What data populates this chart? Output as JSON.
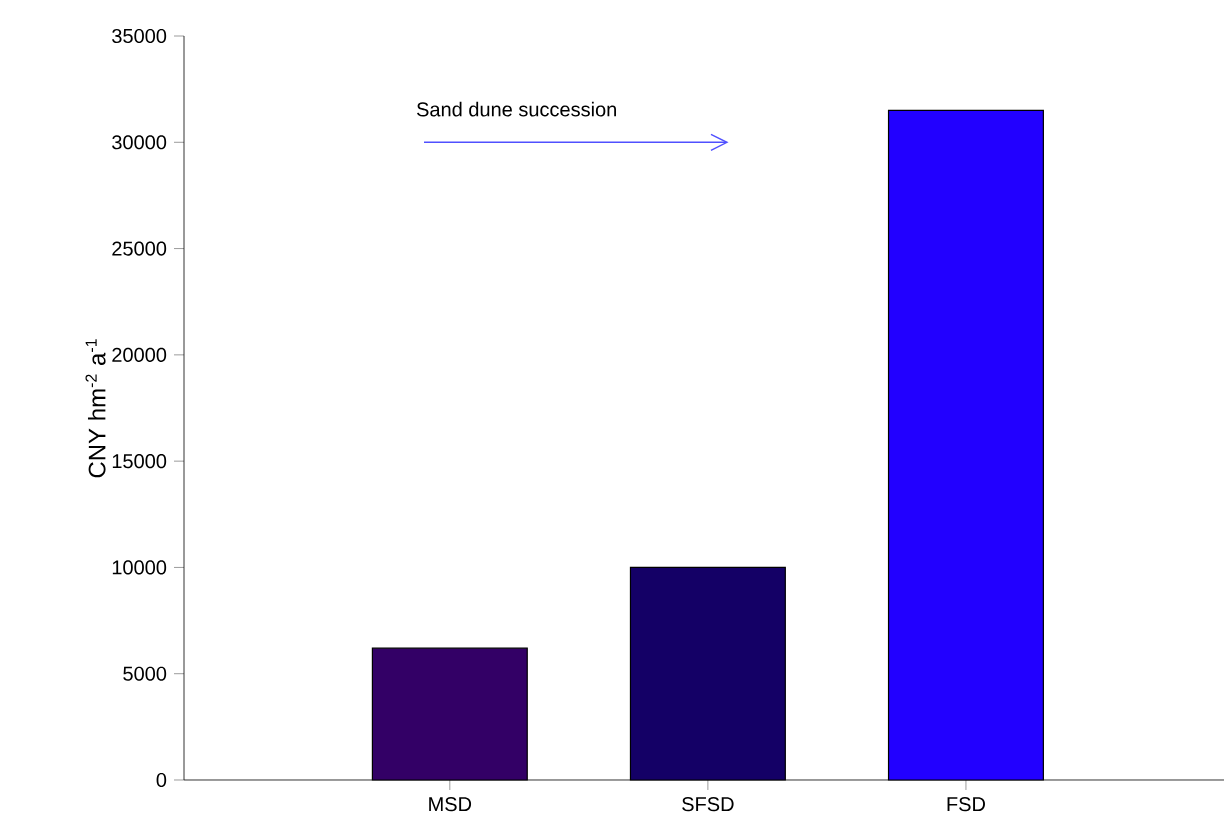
{
  "chart_data": {
    "type": "bar",
    "ylabel": "CNY hm$^{-2}$ a$^{-1}$",
    "categories": [
      "MSD",
      "SFSD",
      "FSD"
    ],
    "values": [
      6200,
      10000,
      31500
    ],
    "colors": [
      "#330066",
      "#140066",
      "#2200ff"
    ],
    "ylim": [
      0,
      35000
    ],
    "yticks": [
      0,
      5000,
      10000,
      15000,
      20000,
      25000,
      30000,
      35000
    ],
    "annotations": [
      "Sand dune succession"
    ]
  }
}
